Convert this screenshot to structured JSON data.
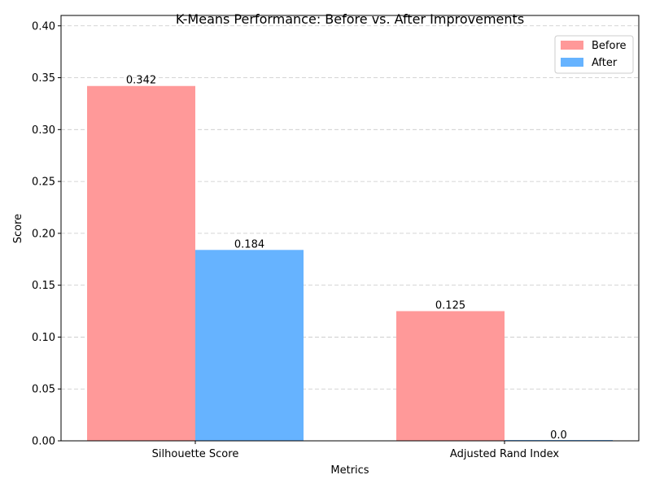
{
  "chart_data": {
    "type": "bar",
    "title": "K-Means Performance: Before vs. After Improvements",
    "xlabel": "Metrics",
    "ylabel": "Score",
    "categories": [
      "Silhouette Score",
      "Adjusted Rand Index"
    ],
    "series": [
      {
        "name": "Before",
        "color": "#ff9999",
        "values": [
          0.342,
          0.125
        ],
        "labels": [
          "0.342",
          "0.125"
        ]
      },
      {
        "name": "After",
        "color": "#66b3ff",
        "values": [
          0.184,
          0.0
        ],
        "labels": [
          "0.184",
          "0.0"
        ]
      }
    ],
    "ylim": [
      0,
      0.41
    ],
    "yticks": [
      "0.00",
      "0.05",
      "0.10",
      "0.15",
      "0.20",
      "0.25",
      "0.30",
      "0.35",
      "0.40"
    ],
    "grid": "y-dashed",
    "legend": "top-right"
  }
}
